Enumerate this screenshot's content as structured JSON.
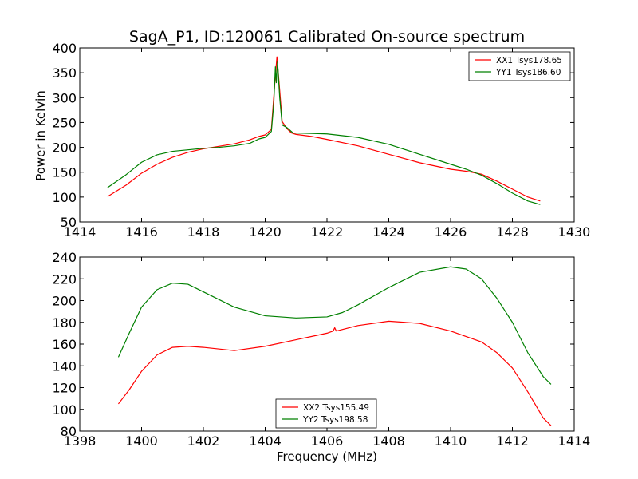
{
  "figure": {
    "title": "SagA_P1, ID:120061 Calibrated On-source spectrum",
    "xlabel": "Frequency (MHz)",
    "ylabel": "Power in Kelvin"
  },
  "colors": {
    "red": "#ff0000",
    "green": "#008000"
  },
  "chart_data": [
    {
      "type": "line",
      "title": "SagA_P1, ID:120061 Calibrated On-source spectrum",
      "xlabel": "",
      "ylabel": "Power in Kelvin",
      "xlim": [
        1414,
        1430
      ],
      "ylim": [
        50,
        400
      ],
      "xticks": [
        1414,
        1416,
        1418,
        1420,
        1422,
        1424,
        1426,
        1428,
        1430
      ],
      "yticks": [
        50,
        100,
        150,
        200,
        250,
        300,
        350,
        400
      ],
      "grid": false,
      "legend_position": "top-right",
      "series": [
        {
          "name": "XX1 Tsys178.65",
          "color": "#ff0000",
          "points": [
            [
              1414.9,
              101
            ],
            [
              1415.5,
              124
            ],
            [
              1416,
              148
            ],
            [
              1416.5,
              166
            ],
            [
              1417,
              180
            ],
            [
              1417.5,
              190
            ],
            [
              1418,
              197
            ],
            [
              1418.5,
              202
            ],
            [
              1419,
              207
            ],
            [
              1419.5,
              215
            ],
            [
              1419.8,
              222
            ],
            [
              1420.0,
              225
            ],
            [
              1420.2,
              236
            ],
            [
              1420.3,
              320
            ],
            [
              1420.38,
              382
            ],
            [
              1420.45,
              330
            ],
            [
              1420.55,
              252
            ],
            [
              1420.7,
              238
            ],
            [
              1420.85,
              229
            ],
            [
              1421.0,
              226
            ],
            [
              1421.5,
              222
            ],
            [
              1422,
              216
            ],
            [
              1423,
              203
            ],
            [
              1424,
              186
            ],
            [
              1425,
              169
            ],
            [
              1426,
              156
            ],
            [
              1426.5,
              152
            ],
            [
              1427,
              146
            ],
            [
              1427.5,
              132
            ],
            [
              1428,
              116
            ],
            [
              1428.5,
              100
            ],
            [
              1428.9,
              92
            ]
          ]
        },
        {
          "name": "YY1 Tsys186.60",
          "color": "#008000",
          "points": [
            [
              1414.9,
              119
            ],
            [
              1415.5,
              145
            ],
            [
              1416,
              170
            ],
            [
              1416.5,
              185
            ],
            [
              1417,
              192
            ],
            [
              1417.5,
              195
            ],
            [
              1418,
              198
            ],
            [
              1418.5,
              200
            ],
            [
              1419,
              203
            ],
            [
              1419.5,
              208
            ],
            [
              1419.8,
              217
            ],
            [
              1420.0,
              220
            ],
            [
              1420.2,
              232
            ],
            [
              1420.28,
              290
            ],
            [
              1420.33,
              362
            ],
            [
              1420.36,
              330
            ],
            [
              1420.4,
              372
            ],
            [
              1420.47,
              300
            ],
            [
              1420.55,
              245
            ],
            [
              1420.7,
              240
            ],
            [
              1420.9,
              229
            ],
            [
              1421.5,
              228
            ],
            [
              1422,
              227
            ],
            [
              1423,
              220
            ],
            [
              1424,
              206
            ],
            [
              1425,
              186
            ],
            [
              1426,
              166
            ],
            [
              1426.5,
              156
            ],
            [
              1427,
              144
            ],
            [
              1427.5,
              127
            ],
            [
              1428,
              108
            ],
            [
              1428.5,
              92
            ],
            [
              1428.9,
              85
            ]
          ]
        }
      ]
    },
    {
      "type": "line",
      "title": "",
      "xlabel": "Frequency (MHz)",
      "ylabel": "",
      "xlim": [
        1398,
        1414
      ],
      "ylim": [
        80,
        240
      ],
      "xticks": [
        1398,
        1400,
        1402,
        1404,
        1406,
        1408,
        1410,
        1412,
        1414
      ],
      "yticks": [
        80,
        100,
        120,
        140,
        160,
        180,
        200,
        220,
        240
      ],
      "grid": false,
      "legend_position": "bottom-center",
      "series": [
        {
          "name": "XX2 Tsys155.49",
          "color": "#ff0000",
          "points": [
            [
              1399.25,
              105
            ],
            [
              1399.6,
              118
            ],
            [
              1400,
              135
            ],
            [
              1400.5,
              150
            ],
            [
              1401,
              157
            ],
            [
              1401.5,
              158
            ],
            [
              1402,
              157
            ],
            [
              1403,
              154
            ],
            [
              1404,
              158
            ],
            [
              1405,
              164
            ],
            [
              1406,
              170
            ],
            [
              1406.2,
              172
            ],
            [
              1406.25,
              175
            ],
            [
              1406.3,
              172
            ],
            [
              1407,
              177
            ],
            [
              1408,
              181
            ],
            [
              1409,
              179
            ],
            [
              1410,
              172
            ],
            [
              1411,
              162
            ],
            [
              1411.5,
              152
            ],
            [
              1412,
              138
            ],
            [
              1412.5,
              116
            ],
            [
              1413,
              92
            ],
            [
              1413.25,
              85
            ]
          ]
        },
        {
          "name": "YY2 Tsys198.58",
          "color": "#008000",
          "points": [
            [
              1399.25,
              148
            ],
            [
              1399.6,
              170
            ],
            [
              1400,
              194
            ],
            [
              1400.5,
              210
            ],
            [
              1401,
              216
            ],
            [
              1401.5,
              215
            ],
            [
              1402,
              208
            ],
            [
              1403,
              194
            ],
            [
              1404,
              186
            ],
            [
              1405,
              184
            ],
            [
              1406,
              185
            ],
            [
              1406.5,
              189
            ],
            [
              1407,
              196
            ],
            [
              1408,
              212
            ],
            [
              1409,
              226
            ],
            [
              1410,
              231
            ],
            [
              1410.5,
              229
            ],
            [
              1411,
              220
            ],
            [
              1411.5,
              202
            ],
            [
              1412,
              180
            ],
            [
              1412.5,
              152
            ],
            [
              1413,
              130
            ],
            [
              1413.25,
              123
            ]
          ]
        }
      ]
    }
  ]
}
